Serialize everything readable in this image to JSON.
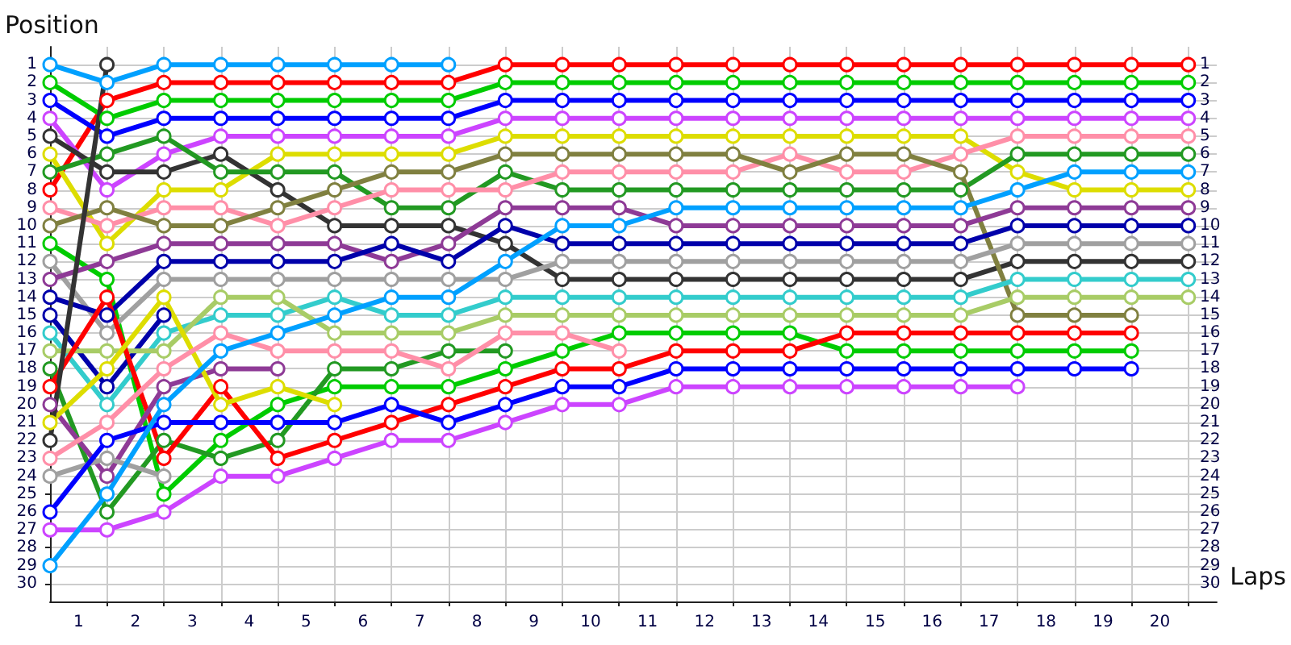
{
  "chart_data": {
    "type": "line",
    "xlabel": "Laps",
    "ylabel": "Position",
    "x": [
      0,
      1,
      2,
      3,
      4,
      5,
      6,
      7,
      8,
      9,
      10,
      11,
      12,
      13,
      14,
      15,
      16,
      17,
      18,
      19,
      20
    ],
    "xlim": [
      0,
      20.5
    ],
    "xticks": [
      {
        "value": 0.5,
        "label": "1"
      },
      {
        "value": 1,
        "label": null
      },
      {
        "value": 1.5,
        "label": "2"
      },
      {
        "value": 2,
        "label": null
      },
      {
        "value": 2.5,
        "label": "3"
      },
      {
        "value": 3,
        "label": null
      },
      {
        "value": 3.5,
        "label": "4"
      },
      {
        "value": 4,
        "label": null
      },
      {
        "value": 4.5,
        "label": "5"
      },
      {
        "value": 5,
        "label": null
      },
      {
        "value": 5.5,
        "label": "6"
      },
      {
        "value": 6,
        "label": null
      },
      {
        "value": 6.5,
        "label": "7"
      },
      {
        "value": 7,
        "label": null
      },
      {
        "value": 7.5,
        "label": "8"
      },
      {
        "value": 8,
        "label": null
      },
      {
        "value": 8.5,
        "label": "9"
      },
      {
        "value": 9,
        "label": null
      },
      {
        "value": 9.5,
        "label": "10"
      },
      {
        "value": 10,
        "label": null
      },
      {
        "value": 10.5,
        "label": "11"
      },
      {
        "value": 11,
        "label": null
      },
      {
        "value": 11.5,
        "label": "12"
      },
      {
        "value": 12,
        "label": null
      },
      {
        "value": 12.5,
        "label": "13"
      },
      {
        "value": 13,
        "label": null
      },
      {
        "value": 13.5,
        "label": "14"
      },
      {
        "value": 14,
        "label": null
      },
      {
        "value": 14.5,
        "label": "15"
      },
      {
        "value": 15,
        "label": null
      },
      {
        "value": 15.5,
        "label": "16"
      },
      {
        "value": 16,
        "label": null
      },
      {
        "value": 16.5,
        "label": "17"
      },
      {
        "value": 17,
        "label": null
      },
      {
        "value": 17.5,
        "label": "18"
      },
      {
        "value": 18,
        "label": null
      },
      {
        "value": 18.5,
        "label": "19"
      },
      {
        "value": 19,
        "label": null
      },
      {
        "value": 19.5,
        "label": "20"
      },
      {
        "value": 20,
        "label": null
      }
    ],
    "ylim": [
      31,
      0
    ],
    "yticks": [
      1,
      2,
      3,
      4,
      5,
      6,
      7,
      8,
      9,
      10,
      11,
      12,
      13,
      14,
      15,
      16,
      17,
      18,
      19,
      20,
      21,
      22,
      23,
      24,
      25,
      26,
      27,
      28,
      29,
      30
    ],
    "y2lim": [
      31,
      0
    ],
    "y2ticks": [
      1,
      2,
      3,
      4,
      5,
      6,
      7,
      8,
      9,
      10,
      11,
      12,
      13,
      14,
      15,
      16,
      17,
      18,
      19,
      20,
      21,
      22,
      23,
      24,
      25,
      26,
      27,
      28,
      29,
      30
    ],
    "grid": true,
    "marker": "circle",
    "line_style": "solid",
    "series": [
      {
        "color": "#00a0ff",
        "values": [
          1,
          2,
          1,
          1,
          1,
          1,
          1,
          1,
          null,
          null,
          null,
          null,
          null,
          null,
          null,
          null,
          null,
          null,
          null,
          null,
          null
        ]
      },
      {
        "color": "#ff0000",
        "values": [
          8,
          3,
          2,
          2,
          2,
          2,
          2,
          2,
          1,
          1,
          1,
          1,
          1,
          1,
          1,
          1,
          1,
          1,
          1,
          1,
          1
        ]
      },
      {
        "color": "#00cc00",
        "values": [
          2,
          4,
          3,
          3,
          3,
          3,
          3,
          3,
          2,
          2,
          2,
          2,
          2,
          2,
          2,
          2,
          2,
          2,
          2,
          2,
          2
        ]
      },
      {
        "color": "#0000ff",
        "values": [
          3,
          5,
          4,
          4,
          4,
          4,
          4,
          4,
          3,
          3,
          3,
          3,
          3,
          3,
          3,
          3,
          3,
          3,
          3,
          3,
          3
        ]
      },
      {
        "color": "#cc44ff",
        "values": [
          4,
          8,
          6,
          5,
          5,
          5,
          5,
          5,
          4,
          4,
          4,
          4,
          4,
          4,
          4,
          4,
          4,
          4,
          4,
          4,
          4
        ]
      },
      {
        "color": "#333333",
        "values": [
          5,
          7,
          7,
          6,
          8,
          10,
          10,
          10,
          11,
          13,
          13,
          13,
          13,
          13,
          13,
          13,
          13,
          12,
          12,
          12,
          12
        ]
      },
      {
        "color": "#dddd00",
        "values": [
          6,
          11,
          8,
          8,
          6,
          6,
          6,
          6,
          5,
          5,
          5,
          5,
          5,
          5,
          5,
          5,
          5,
          7,
          8,
          8,
          8
        ]
      },
      {
        "color": "#229922",
        "values": [
          7,
          6,
          5,
          7,
          7,
          7,
          9,
          9,
          7,
          8,
          8,
          8,
          8,
          8,
          8,
          8,
          8,
          6,
          6,
          6,
          6
        ]
      },
      {
        "color": "#ff8fa8",
        "values": [
          9,
          10,
          9,
          9,
          10,
          9,
          8,
          8,
          8,
          7,
          7,
          7,
          7,
          6,
          7,
          7,
          6,
          5,
          5,
          5,
          5
        ]
      },
      {
        "color": "#808040",
        "values": [
          10,
          9,
          10,
          10,
          9,
          8,
          7,
          7,
          6,
          6,
          6,
          6,
          6,
          7,
          6,
          6,
          7,
          15,
          15,
          15,
          null
        ]
      },
      {
        "color": "#00cc00",
        "values": [
          11,
          13,
          25,
          22,
          20,
          19,
          19,
          19,
          18,
          17,
          16,
          16,
          16,
          16,
          17,
          17,
          17,
          17,
          17,
          17,
          null
        ]
      },
      {
        "color": "#a0a0a0",
        "values": [
          12,
          16,
          13,
          13,
          13,
          13,
          13,
          13,
          13,
          12,
          12,
          12,
          12,
          12,
          12,
          12,
          12,
          11,
          11,
          11,
          11
        ]
      },
      {
        "color": "#8e3a96",
        "values": [
          13,
          12,
          11,
          11,
          11,
          11,
          12,
          11,
          9,
          9,
          9,
          10,
          10,
          10,
          10,
          10,
          10,
          9,
          9,
          9,
          9
        ]
      },
      {
        "color": "#0000aa",
        "values": [
          14,
          15,
          12,
          12,
          12,
          12,
          11,
          12,
          10,
          11,
          11,
          11,
          11,
          11,
          11,
          11,
          11,
          10,
          10,
          10,
          10
        ]
      },
      {
        "color": "#0000aa",
        "values": [
          15,
          19,
          15,
          null,
          null,
          null,
          null,
          null,
          null,
          null,
          null,
          null,
          null,
          null,
          null,
          null,
          null,
          null,
          null,
          null,
          null
        ]
      },
      {
        "color": "#33cccc",
        "values": [
          16,
          20,
          16,
          15,
          15,
          14,
          15,
          15,
          14,
          14,
          14,
          14,
          14,
          14,
          14,
          14,
          14,
          13,
          13,
          13,
          13
        ]
      },
      {
        "color": "#a8cc66",
        "values": [
          17,
          17,
          17,
          14,
          14,
          16,
          16,
          16,
          15,
          15,
          15,
          15,
          15,
          15,
          15,
          15,
          15,
          14,
          14,
          14,
          14
        ]
      },
      {
        "color": "#229922",
        "values": [
          18,
          26,
          22,
          23,
          22,
          18,
          18,
          17,
          17,
          null,
          null,
          null,
          null,
          null,
          null,
          null,
          null,
          null,
          null,
          null,
          null
        ]
      },
      {
        "color": "#ff0000",
        "values": [
          19,
          14,
          23,
          19,
          23,
          22,
          21,
          20,
          19,
          18,
          18,
          17,
          17,
          17,
          16,
          16,
          16,
          16,
          16,
          16,
          null
        ]
      },
      {
        "color": "#8e3a96",
        "values": [
          20,
          24,
          19,
          18,
          18,
          null,
          null,
          null,
          null,
          null,
          null,
          null,
          null,
          null,
          null,
          null,
          null,
          null,
          null,
          null,
          null
        ]
      },
      {
        "color": "#dddd00",
        "values": [
          21,
          18,
          14,
          20,
          19,
          20,
          null,
          null,
          null,
          null,
          null,
          null,
          null,
          null,
          null,
          null,
          null,
          null,
          null,
          null,
          null
        ]
      },
      {
        "color": "#333333",
        "values": [
          22,
          1,
          null,
          null,
          null,
          null,
          null,
          null,
          null,
          null,
          null,
          null,
          null,
          null,
          null,
          null,
          null,
          null,
          null,
          null,
          null
        ]
      },
      {
        "color": "#ff8fa8",
        "values": [
          23,
          21,
          18,
          16,
          17,
          17,
          17,
          18,
          16,
          16,
          17,
          null,
          null,
          null,
          null,
          null,
          null,
          null,
          null,
          null,
          null
        ]
      },
      {
        "color": "#a0a0a0",
        "values": [
          24,
          23,
          24,
          null,
          null,
          null,
          null,
          null,
          null,
          null,
          null,
          null,
          null,
          null,
          null,
          null,
          null,
          null,
          null,
          null,
          null
        ]
      },
      {
        "color": "#0000ff",
        "values": [
          26,
          22,
          21,
          21,
          21,
          21,
          20,
          21,
          20,
          19,
          19,
          18,
          18,
          18,
          18,
          18,
          18,
          18,
          18,
          18,
          null
        ]
      },
      {
        "color": "#cc44ff",
        "values": [
          27,
          27,
          26,
          24,
          24,
          23,
          22,
          22,
          21,
          20,
          20,
          19,
          19,
          19,
          19,
          19,
          19,
          19,
          null,
          null,
          null
        ]
      },
      {
        "color": "#00a0ff",
        "values": [
          29,
          25,
          20,
          17,
          16,
          15,
          14,
          14,
          12,
          10,
          10,
          9,
          9,
          9,
          9,
          9,
          9,
          8,
          7,
          7,
          7
        ]
      }
    ]
  }
}
